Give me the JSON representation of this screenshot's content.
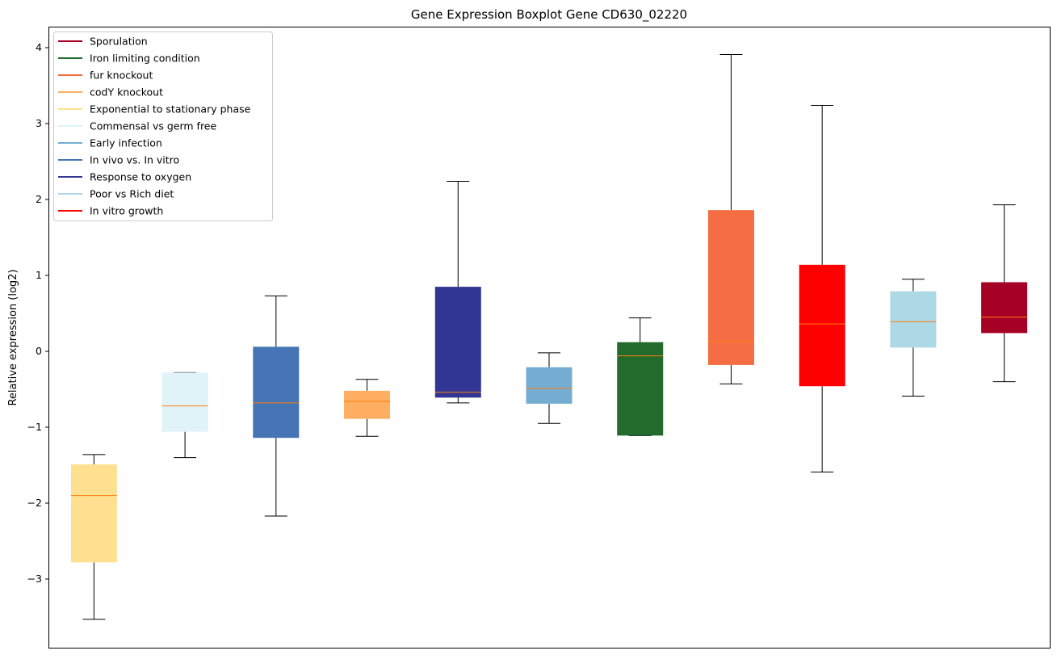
{
  "chart_data": {
    "type": "boxplot",
    "title": "Gene Expression Boxplot Gene CD630_02220",
    "xlabel": "",
    "ylabel": "Relative expression (log2)",
    "ylim": [
      -3.9,
      4.28
    ],
    "yticks": [
      -3,
      -2,
      -1,
      0,
      1,
      2,
      3,
      4
    ],
    "ytick_labels": [
      "−3",
      "−2",
      "−1",
      "0",
      "1",
      "2",
      "3",
      "4"
    ],
    "grid": false,
    "legend_position": "top-left",
    "median_color": "#ff7f0e",
    "boxes": [
      {
        "name": "Exponential to stationary phase",
        "color": "#fee090",
        "whislo": -3.53,
        "q1": -2.78,
        "med": -1.9,
        "q3": -1.49,
        "whishi": -1.36
      },
      {
        "name": "Commensal vs germ free",
        "color": "#e0f3f8",
        "whislo": -1.4,
        "q1": -1.06,
        "med": -0.72,
        "q3": -0.28,
        "whishi": -0.28
      },
      {
        "name": "In vivo vs. In vitro",
        "color": "#4575b4",
        "whislo": -2.17,
        "q1": -1.14,
        "med": -0.68,
        "q3": 0.06,
        "whishi": 0.73
      },
      {
        "name": "codY knockout",
        "color": "#fdae61",
        "whislo": -1.12,
        "q1": -0.89,
        "med": -0.66,
        "q3": -0.52,
        "whishi": -0.37
      },
      {
        "name": "Response to oxygen",
        "color": "#313695",
        "whislo": -0.68,
        "q1": -0.61,
        "med": -0.54,
        "q3": 0.85,
        "whishi": 2.24
      },
      {
        "name": "Early infection",
        "color": "#74add1",
        "whislo": -0.95,
        "q1": -0.69,
        "med": -0.49,
        "q3": -0.21,
        "whishi": -0.02
      },
      {
        "name": "Iron limiting condition",
        "color": "#226b2d",
        "whislo": -1.11,
        "q1": -1.11,
        "med": -0.06,
        "q3": 0.12,
        "whishi": 0.44
      },
      {
        "name": "fur knockout",
        "color": "#f46d43",
        "whislo": -0.43,
        "q1": -0.18,
        "med": 0.13,
        "q3": 1.86,
        "whishi": 3.91
      },
      {
        "name": "In vitro growth",
        "color": "#ff0000",
        "whislo": -1.59,
        "q1": -0.46,
        "med": 0.36,
        "q3": 1.14,
        "whishi": 3.24
      },
      {
        "name": "Poor vs Rich diet",
        "color": "#add8e6",
        "whislo": -0.59,
        "q1": 0.05,
        "med": 0.39,
        "q3": 0.79,
        "whishi": 0.95
      },
      {
        "name": "Sporulation",
        "color": "#a50026",
        "whislo": -0.4,
        "q1": 0.24,
        "med": 0.45,
        "q3": 0.91,
        "whishi": 1.93
      }
    ],
    "legend": [
      {
        "label": "Sporulation",
        "color": "#a50026"
      },
      {
        "label": "Iron limiting condition",
        "color": "#226b2d"
      },
      {
        "label": "fur knockout",
        "color": "#f46d43"
      },
      {
        "label": "codY knockout",
        "color": "#fdae61"
      },
      {
        "label": "Exponential to stationary phase",
        "color": "#fee090"
      },
      {
        "label": "Commensal vs germ free",
        "color": "#e0f3f8"
      },
      {
        "label": "Early infection",
        "color": "#74add1"
      },
      {
        "label": "In vivo vs. In vitro",
        "color": "#4575b4"
      },
      {
        "label": "Response to oxygen",
        "color": "#313695"
      },
      {
        "label": "Poor vs Rich diet",
        "color": "#add8e6"
      },
      {
        "label": "In vitro growth",
        "color": "#ff0000"
      }
    ]
  }
}
